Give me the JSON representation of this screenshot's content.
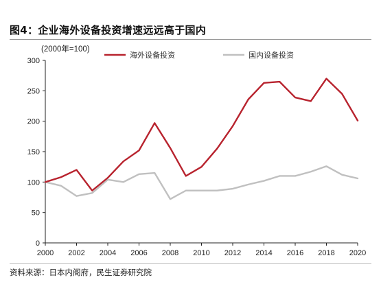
{
  "figure": {
    "title": "图4：企业海外设备投资增速远远高于国内",
    "source": "资料来源：日本内阁府，民生证券研究院"
  },
  "chart_data": {
    "type": "line",
    "title": "图4：企业海外设备投资增速远远高于国内",
    "unit_label": "(2000年=100)",
    "xlabel": "",
    "ylabel": "",
    "x": [
      2000,
      2001,
      2002,
      2003,
      2004,
      2005,
      2006,
      2007,
      2008,
      2009,
      2010,
      2011,
      2012,
      2013,
      2014,
      2015,
      2016,
      2017,
      2018,
      2019,
      2020
    ],
    "xticks": [
      2000,
      2002,
      2004,
      2006,
      2008,
      2010,
      2012,
      2014,
      2016,
      2018,
      2020
    ],
    "yticks": [
      0,
      50,
      100,
      150,
      200,
      250,
      300
    ],
    "xlim": [
      2000,
      2020
    ],
    "ylim": [
      0,
      300
    ],
    "grid": false,
    "legend_position": "top",
    "series": [
      {
        "name": "海外设备投资",
        "color": "#b8232e",
        "values": [
          100,
          108,
          120,
          86,
          107,
          134,
          152,
          197,
          156,
          110,
          125,
          155,
          192,
          236,
          263,
          265,
          239,
          233,
          270,
          245,
          201
        ]
      },
      {
        "name": "国内设备投资",
        "color": "#c0c0c0",
        "values": [
          100,
          94,
          77,
          82,
          104,
          100,
          113,
          115,
          72,
          86,
          86,
          86,
          89,
          96,
          102,
          110,
          110,
          117,
          126,
          112,
          106
        ]
      }
    ]
  }
}
